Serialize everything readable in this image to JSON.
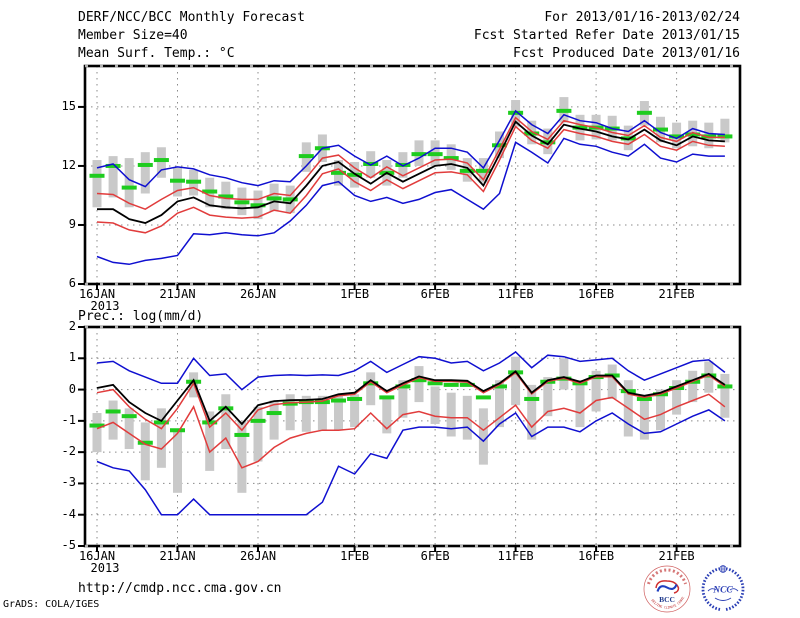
{
  "header": {
    "title": "DERF/NCC/BCC Monthly Forecast",
    "member_size": "Member Size=40",
    "variable_label": "Mean Surf. Temp.: °C",
    "for_range": "For 2013/01/16-2013/02/24",
    "refer_date": "Fcst Started Refer Date 2013/01/15",
    "produced_date": "Fcst Produced Date 2013/01/16"
  },
  "footer": {
    "url": "http://cmdp.ncc.cma.gov.cn",
    "credit": "GrADS: COLA/IGES"
  },
  "logos": {
    "bcc_label": "BCC",
    "bcc_ring_text": "BEIJING CLIMATE CENTER",
    "ncc_label": "NCC"
  },
  "colors": {
    "envelope_blue": "#0f0fd0",
    "quartile_red": "#e13c3c",
    "mean_black": "#000000",
    "marker_green": "#1ecc1e",
    "spread_gray": "#c9c9c9",
    "grid_gray": "#8a8a8a"
  },
  "chart_data": [
    {
      "type": "line",
      "id": "surface-temperature",
      "title": "Mean Surf. Temp.: °C",
      "ylim": [
        6,
        17.08
      ],
      "yticks": [
        15,
        12,
        9,
        6
      ],
      "x_year_label": "2013",
      "x_ticks": [
        {
          "day": 0,
          "label": "16JAN",
          "year": "2013"
        },
        {
          "day": 5,
          "label": "21JAN"
        },
        {
          "day": 10,
          "label": "26JAN"
        },
        {
          "day": 16,
          "label": "1FEB"
        },
        {
          "day": 21,
          "label": "6FEB"
        },
        {
          "day": 26,
          "label": "11FEB"
        },
        {
          "day": 31,
          "label": "16FEB"
        },
        {
          "day": 36,
          "label": "21FEB"
        }
      ],
      "n_points": 40,
      "series": [
        {
          "name": "ensemble-max",
          "color": "#0f0fd0",
          "values": [
            11.9,
            12.1,
            11.3,
            10.95,
            11.8,
            11.95,
            11.85,
            11.55,
            11.4,
            11.15,
            11.0,
            11.25,
            11.2,
            12.0,
            12.9,
            13.05,
            12.5,
            12.05,
            12.5,
            12.0,
            12.4,
            12.9,
            12.9,
            12.7,
            11.9,
            13.3,
            14.8,
            14.1,
            13.65,
            14.6,
            14.3,
            14.2,
            13.9,
            13.75,
            14.3,
            13.7,
            13.4,
            13.9,
            13.65,
            13.6
          ]
        },
        {
          "name": "ensemble-upper",
          "color": "#e13c3c",
          "values": [
            10.6,
            10.55,
            10.1,
            9.8,
            10.3,
            10.75,
            10.9,
            10.5,
            10.35,
            10.3,
            10.3,
            10.6,
            10.5,
            11.4,
            12.4,
            12.55,
            11.9,
            11.4,
            11.95,
            11.5,
            11.9,
            12.3,
            12.35,
            12.15,
            11.3,
            12.85,
            14.45,
            13.75,
            13.35,
            14.3,
            14.1,
            13.95,
            13.7,
            13.55,
            14.05,
            13.45,
            13.25,
            13.7,
            13.45,
            13.45
          ]
        },
        {
          "name": "ensemble-mean",
          "color": "#000000",
          "values": [
            9.8,
            9.8,
            9.3,
            9.1,
            9.5,
            10.2,
            10.4,
            10.0,
            9.9,
            9.85,
            9.9,
            10.2,
            10.1,
            11.0,
            12.0,
            12.2,
            11.6,
            11.1,
            11.65,
            11.2,
            11.6,
            12.0,
            12.1,
            11.9,
            11.0,
            12.6,
            14.25,
            13.55,
            13.1,
            14.1,
            13.9,
            13.75,
            13.5,
            13.35,
            13.85,
            13.3,
            13.05,
            13.5,
            13.3,
            13.25
          ]
        },
        {
          "name": "ensemble-lower",
          "color": "#e13c3c",
          "values": [
            9.15,
            9.1,
            8.75,
            8.6,
            8.95,
            9.6,
            9.9,
            9.5,
            9.4,
            9.35,
            9.4,
            9.75,
            9.6,
            10.5,
            11.6,
            11.85,
            11.2,
            10.75,
            11.3,
            10.85,
            11.25,
            11.65,
            11.7,
            11.55,
            10.7,
            12.3,
            14.0,
            13.3,
            12.9,
            13.85,
            13.65,
            13.5,
            13.25,
            13.1,
            13.6,
            13.0,
            12.8,
            13.25,
            13.05,
            13.0
          ]
        },
        {
          "name": "ensemble-min",
          "color": "#0f0fd0",
          "values": [
            7.4,
            7.1,
            7.0,
            7.2,
            7.3,
            7.45,
            8.55,
            8.5,
            8.6,
            8.5,
            8.45,
            8.6,
            9.2,
            10.0,
            11.0,
            11.2,
            10.5,
            10.2,
            10.4,
            10.1,
            10.3,
            10.65,
            10.8,
            10.3,
            9.8,
            10.6,
            13.2,
            12.7,
            12.15,
            13.4,
            13.1,
            13.0,
            12.7,
            12.5,
            13.1,
            12.4,
            12.2,
            12.6,
            12.5,
            12.5
          ]
        }
      ],
      "green_markers": {
        "name": "daily-marker",
        "color": "#1ecc1e",
        "values": [
          11.5,
          12.0,
          10.9,
          12.05,
          12.3,
          11.25,
          11.2,
          10.7,
          10.45,
          10.15,
          10.0,
          10.35,
          10.3,
          12.5,
          12.9,
          11.65,
          11.55,
          12.1,
          11.65,
          12.05,
          12.6,
          12.6,
          12.4,
          11.75,
          11.75,
          13.05,
          14.7,
          13.65,
          13.2,
          14.8,
          13.95,
          13.95,
          13.9,
          13.4,
          14.7,
          13.85,
          13.5,
          13.6,
          13.5,
          13.5
        ]
      },
      "spread_bars": {
        "name": "spread-bar",
        "color": "#c9c9c9",
        "ranges": [
          [
            9.9,
            12.3
          ],
          [
            10.4,
            12.5
          ],
          [
            9.9,
            12.4
          ],
          [
            10.6,
            12.7
          ],
          [
            11.4,
            12.95
          ],
          [
            10.45,
            11.9
          ],
          [
            10.5,
            11.8
          ],
          [
            9.9,
            11.4
          ],
          [
            9.8,
            11.2
          ],
          [
            9.5,
            10.9
          ],
          [
            9.3,
            10.75
          ],
          [
            9.7,
            11.1
          ],
          [
            9.6,
            11.0
          ],
          [
            11.7,
            13.2
          ],
          [
            12.2,
            13.6
          ],
          [
            11.0,
            12.3
          ],
          [
            10.9,
            12.2
          ],
          [
            11.4,
            12.75
          ],
          [
            11.0,
            12.3
          ],
          [
            11.4,
            12.7
          ],
          [
            12.0,
            13.3
          ],
          [
            12.0,
            13.3
          ],
          [
            11.8,
            13.1
          ],
          [
            11.2,
            12.4
          ],
          [
            11.15,
            12.4
          ],
          [
            12.4,
            13.75
          ],
          [
            14.0,
            15.35
          ],
          [
            13.1,
            14.3
          ],
          [
            12.6,
            13.9
          ],
          [
            14.2,
            15.5
          ],
          [
            13.3,
            14.6
          ],
          [
            13.35,
            14.6
          ],
          [
            13.3,
            14.55
          ],
          [
            12.8,
            14.05
          ],
          [
            14.05,
            15.3
          ],
          [
            13.2,
            14.5
          ],
          [
            12.9,
            14.2
          ],
          [
            13.0,
            14.3
          ],
          [
            12.9,
            14.2
          ],
          [
            13.2,
            14.4
          ]
        ]
      }
    },
    {
      "type": "line",
      "id": "precipitation",
      "title": "Prec.: log(mm/d)",
      "ylim": [
        -5,
        2
      ],
      "yticks": [
        2,
        1,
        0,
        -1,
        -2,
        -3,
        -4,
        -5
      ],
      "x_year_label": "2013",
      "x_ticks": [
        {
          "day": 0,
          "label": "16JAN",
          "year": "2013"
        },
        {
          "day": 5,
          "label": "21JAN"
        },
        {
          "day": 10,
          "label": "26JAN"
        },
        {
          "day": 16,
          "label": "1FEB"
        },
        {
          "day": 21,
          "label": "6FEB"
        },
        {
          "day": 26,
          "label": "11FEB"
        },
        {
          "day": 31,
          "label": "16FEB"
        },
        {
          "day": 36,
          "label": "21FEB"
        }
      ],
      "n_points": 40,
      "series": [
        {
          "name": "ensemble-max",
          "color": "#0f0fd0",
          "values": [
            0.85,
            0.9,
            0.6,
            0.4,
            0.2,
            0.2,
            1.0,
            0.45,
            0.5,
            0.0,
            0.4,
            0.45,
            0.47,
            0.45,
            0.47,
            0.45,
            0.6,
            0.9,
            0.55,
            0.8,
            1.05,
            1.0,
            0.85,
            0.9,
            0.6,
            0.85,
            1.2,
            0.7,
            1.1,
            1.05,
            0.9,
            0.95,
            1.0,
            0.6,
            0.3,
            0.5,
            0.7,
            0.9,
            0.95,
            0.55
          ]
        },
        {
          "name": "ensemble-mean",
          "color": "#000000",
          "values": [
            0.05,
            0.15,
            -0.4,
            -0.75,
            -1.0,
            -0.35,
            0.3,
            -1.0,
            -0.55,
            -1.1,
            -0.5,
            -0.37,
            -0.34,
            -0.33,
            -0.3,
            -0.15,
            -0.1,
            0.3,
            -0.05,
            0.2,
            0.42,
            0.3,
            0.3,
            0.28,
            -0.05,
            0.2,
            0.58,
            -0.1,
            0.3,
            0.4,
            0.25,
            0.45,
            0.45,
            -0.1,
            -0.2,
            -0.1,
            0.1,
            0.3,
            0.5,
            0.15
          ]
        },
        {
          "name": "ensemble-upper",
          "color": "#e13c3c",
          "values": [
            -0.1,
            0.0,
            -0.55,
            -0.95,
            -1.25,
            -0.6,
            0.2,
            -1.2,
            -0.75,
            -1.3,
            -0.65,
            -0.48,
            -0.42,
            -0.4,
            -0.37,
            -0.2,
            -0.15,
            0.25,
            -0.1,
            0.15,
            0.38,
            0.26,
            0.26,
            0.24,
            -0.1,
            0.16,
            0.54,
            -0.14,
            0.26,
            0.36,
            0.2,
            0.41,
            0.41,
            -0.14,
            -0.25,
            -0.14,
            0.05,
            0.26,
            0.46,
            0.1
          ]
        },
        {
          "name": "ensemble-lower",
          "color": "#e13c3c",
          "values": [
            -1.25,
            -1.05,
            -1.4,
            -1.75,
            -1.9,
            -1.4,
            -0.55,
            -2.0,
            -1.55,
            -2.5,
            -2.3,
            -1.85,
            -1.55,
            -1.4,
            -1.3,
            -1.3,
            -1.25,
            -0.75,
            -1.25,
            -0.8,
            -0.7,
            -0.85,
            -0.9,
            -0.9,
            -1.3,
            -0.9,
            -0.5,
            -1.2,
            -0.7,
            -0.6,
            -0.75,
            -0.35,
            -0.25,
            -0.6,
            -0.95,
            -0.8,
            -0.55,
            -0.35,
            -0.15,
            -0.55
          ]
        },
        {
          "name": "ensemble-min",
          "color": "#0f0fd0",
          "values": [
            -2.3,
            -2.5,
            -2.6,
            -3.2,
            -4.0,
            -4.0,
            -3.5,
            -4.0,
            -4.0,
            -4.0,
            -4.0,
            -4.0,
            -4.0,
            -4.0,
            -3.6,
            -2.45,
            -2.7,
            -2.05,
            -2.2,
            -1.3,
            -1.2,
            -1.2,
            -1.25,
            -1.2,
            -1.65,
            -1.1,
            -0.75,
            -1.5,
            -1.2,
            -1.2,
            -1.35,
            -1.0,
            -0.75,
            -1.1,
            -1.4,
            -1.35,
            -1.1,
            -0.85,
            -0.65,
            -1.0
          ]
        }
      ],
      "green_markers": {
        "name": "daily-marker",
        "color": "#1ecc1e",
        "values": [
          -1.15,
          -0.7,
          -0.85,
          -1.7,
          -1.05,
          -1.3,
          0.25,
          -1.05,
          -0.6,
          -1.45,
          -1.0,
          -0.75,
          -0.45,
          -0.4,
          -0.4,
          -0.35,
          -0.3,
          0.2,
          -0.25,
          0.1,
          0.3,
          0.2,
          0.15,
          0.15,
          -0.25,
          0.1,
          0.55,
          -0.3,
          0.25,
          0.35,
          0.2,
          0.4,
          0.45,
          -0.05,
          -0.3,
          -0.15,
          0.05,
          0.25,
          0.45,
          0.1
        ]
      },
      "spread_bars": {
        "name": "spread-bar",
        "color": "#c9c9c9",
        "ranges": [
          [
            -2.0,
            -0.75
          ],
          [
            -1.6,
            -0.35
          ],
          [
            -1.9,
            -0.6
          ],
          [
            -2.9,
            -1.05
          ],
          [
            -2.5,
            -0.6
          ],
          [
            -3.3,
            -1.3
          ],
          [
            -0.25,
            0.55
          ],
          [
            -2.6,
            -0.7
          ],
          [
            -1.9,
            -0.15
          ],
          [
            -3.3,
            -1.0
          ],
          [
            -2.3,
            -0.55
          ],
          [
            -1.6,
            -0.35
          ],
          [
            -1.3,
            -0.15
          ],
          [
            -1.35,
            -0.2
          ],
          [
            -1.3,
            -0.2
          ],
          [
            -1.3,
            -0.2
          ],
          [
            -1.2,
            -0.15
          ],
          [
            -0.5,
            0.55
          ],
          [
            -1.4,
            -0.2
          ],
          [
            -0.9,
            0.3
          ],
          [
            -0.4,
            0.75
          ],
          [
            -1.1,
            0.1
          ],
          [
            -1.5,
            -0.1
          ],
          [
            -1.6,
            -0.2
          ],
          [
            -2.4,
            -0.6
          ],
          [
            -1.2,
            0.3
          ],
          [
            -0.5,
            1.05
          ],
          [
            -1.6,
            0.15
          ],
          [
            -0.85,
            0.4
          ],
          [
            0.0,
            1.0
          ],
          [
            -1.2,
            0.3
          ],
          [
            -0.7,
            0.6
          ],
          [
            -0.3,
            0.8
          ],
          [
            -1.5,
            0.3
          ],
          [
            -1.6,
            -0.2
          ],
          [
            -1.3,
            0.0
          ],
          [
            -0.8,
            0.3
          ],
          [
            -0.4,
            0.6
          ],
          [
            -0.1,
            0.9
          ],
          [
            -0.9,
            0.5
          ]
        ]
      }
    }
  ]
}
